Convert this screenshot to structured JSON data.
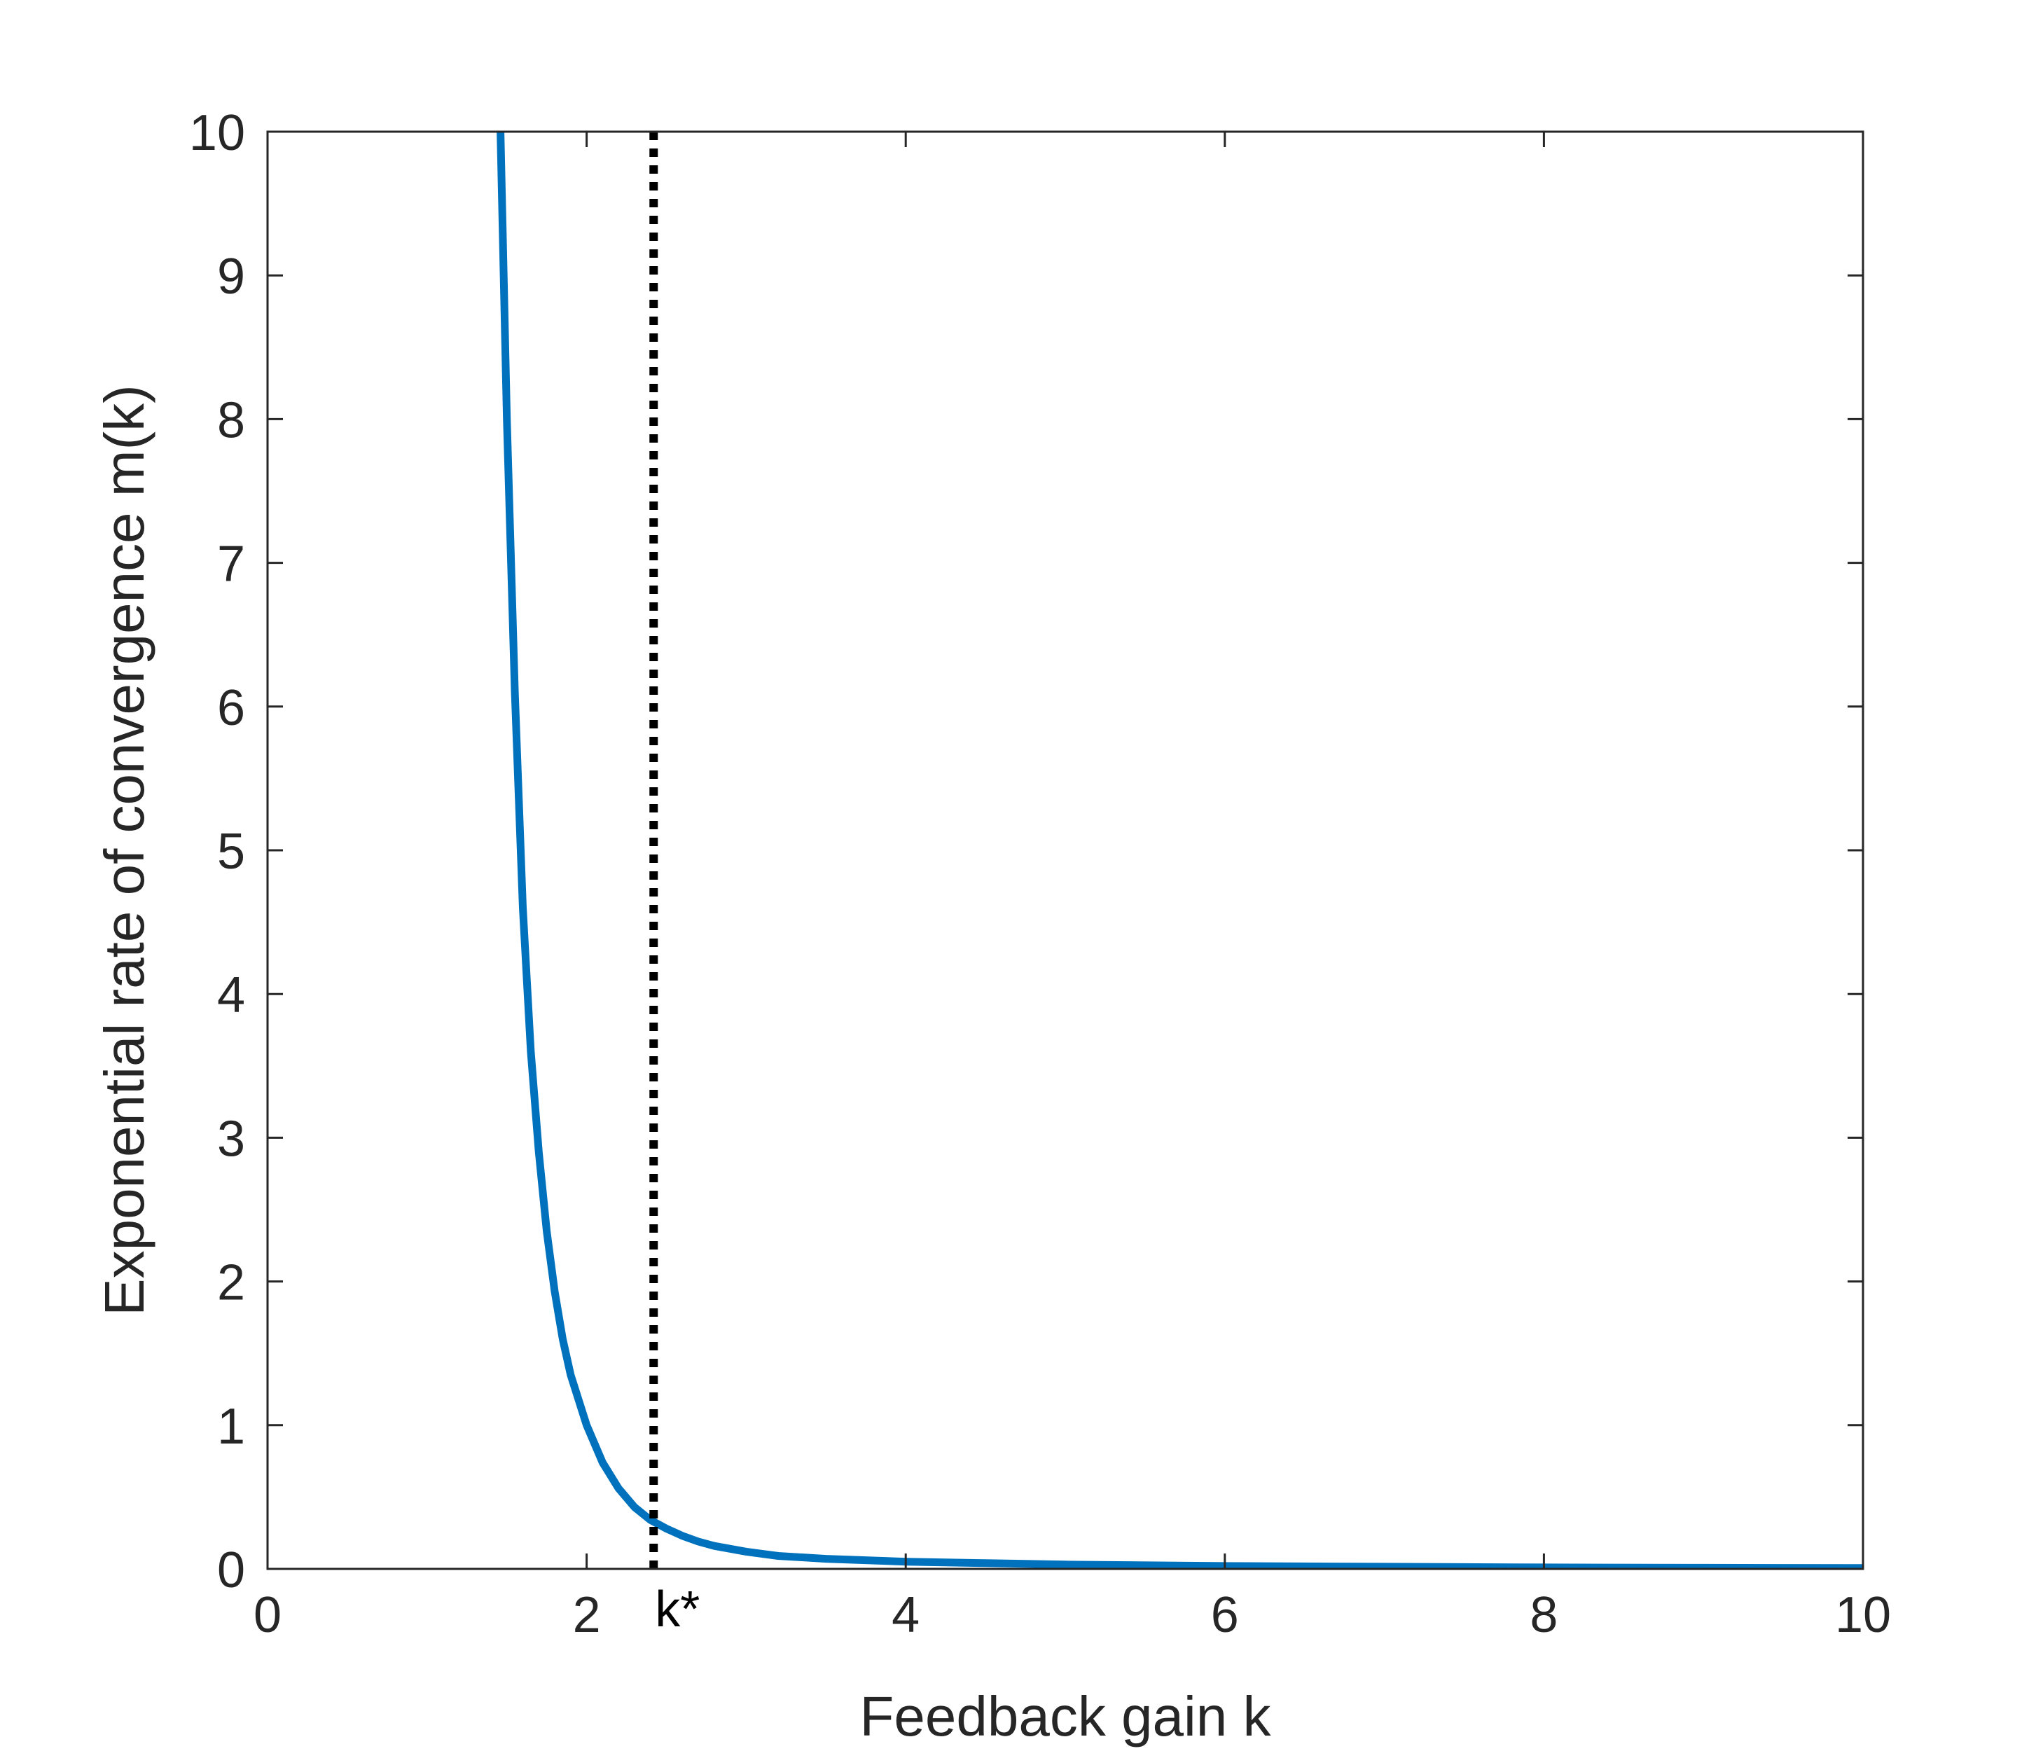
{
  "chart_data": {
    "type": "line",
    "title": "",
    "xlabel": "Feedback gain k",
    "ylabel": "Exponential rate of convergence m(k)",
    "xlim": [
      0,
      10
    ],
    "ylim": [
      0,
      10
    ],
    "xticks": [
      0,
      2,
      4,
      6,
      8,
      10
    ],
    "yticks": [
      0,
      1,
      2,
      3,
      4,
      5,
      6,
      7,
      8,
      9,
      10
    ],
    "xtick_labels": [
      "0",
      "2",
      "4",
      "6",
      "8",
      "10"
    ],
    "ytick_labels": [
      "0",
      "1",
      "2",
      "3",
      "4",
      "5",
      "6",
      "7",
      "8",
      "9",
      "10"
    ],
    "grid": false,
    "legend": "none",
    "series": [
      {
        "color": "#0072BD",
        "style": "solid",
        "x": [
          1.46,
          1.5,
          1.55,
          1.6,
          1.65,
          1.7,
          1.75,
          1.8,
          1.85,
          1.9,
          2.0,
          2.1,
          2.2,
          2.3,
          2.4,
          2.5,
          2.6,
          2.7,
          2.8,
          3.0,
          3.2,
          3.5,
          4.0,
          4.5,
          5.0,
          6.0,
          7.0,
          8.0,
          9.0,
          10.0
        ],
        "y": [
          10.0,
          8.0,
          6.1,
          4.6,
          3.6,
          2.9,
          2.35,
          1.93,
          1.6,
          1.35,
          1.0,
          0.74,
          0.56,
          0.43,
          0.34,
          0.28,
          0.23,
          0.19,
          0.16,
          0.12,
          0.09,
          0.07,
          0.05,
          0.04,
          0.03,
          0.02,
          0.015,
          0.01,
          0.008,
          0.006
        ]
      }
    ],
    "vline": {
      "x": 2.42,
      "style": "dotted",
      "color": "#000000",
      "label": "k*"
    }
  }
}
